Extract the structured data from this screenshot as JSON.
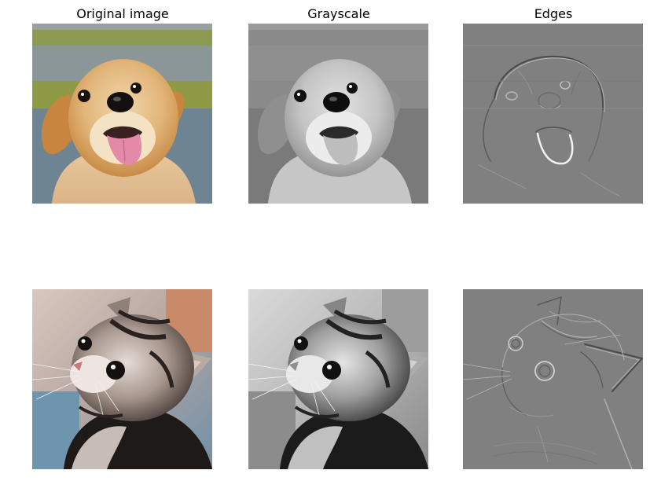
{
  "titles": {
    "col1": "Original image",
    "col2": "Grayscale",
    "col3": "Edges"
  },
  "rows": [
    {
      "subject": "puppy",
      "views": [
        "original",
        "grayscale",
        "edges"
      ]
    },
    {
      "subject": "kitten",
      "views": [
        "original",
        "grayscale",
        "edges"
      ]
    }
  ],
  "colors": {
    "background": "#ffffff",
    "edges_bg": "#808080"
  }
}
